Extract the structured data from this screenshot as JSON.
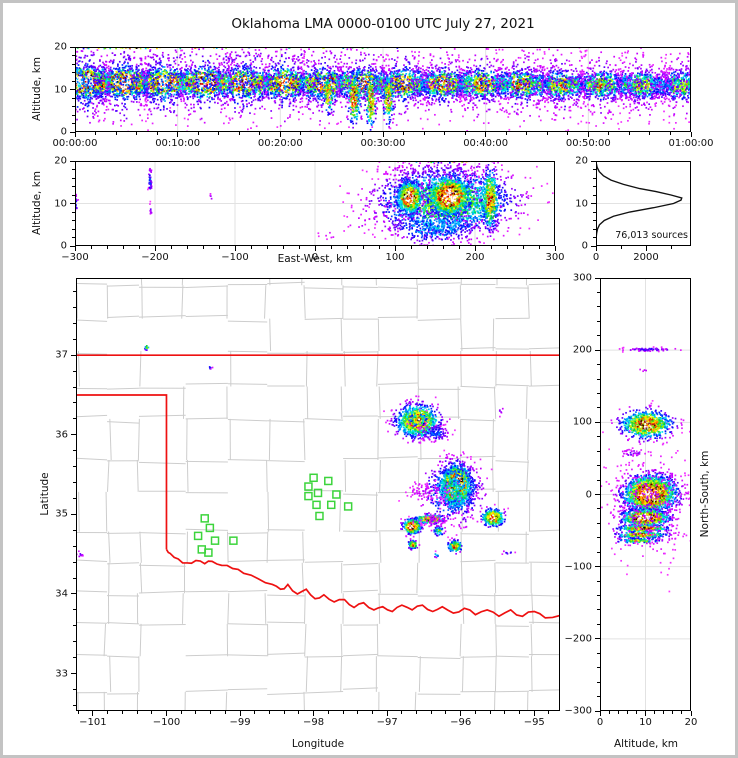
{
  "title": "Oklahoma LMA 0000-0100 UTC July 27, 2021",
  "colors": {
    "state_boundary": "#ee1111",
    "county_lines": "#cdcdcd",
    "stations": "#3cd43c",
    "gridlines": "#e2e2e2",
    "histogram_curve": "#111111",
    "density_scale_low_to_high": [
      "#ff40ff",
      "#6600ff",
      "#0000ff",
      "#00aaff",
      "#00eeee",
      "#00cc33",
      "#99ee00",
      "#ffff00",
      "#ffaa00",
      "#ff2200",
      "#cc0000",
      "#000000",
      "#999999",
      "#ffffff"
    ]
  },
  "chart_data": [
    {
      "id": "time_height",
      "type": "scatter_density",
      "xlabel": "",
      "ylabel": "Altitude, km",
      "xlim": [
        0,
        3600
      ],
      "ylim": [
        0,
        20
      ],
      "xticks": {
        "values": [
          0,
          600,
          1200,
          1800,
          2400,
          3000,
          3600
        ],
        "labels": [
          "00:00:00",
          "00:10:00",
          "00:20:00",
          "00:30:00",
          "00:40:00",
          "00:50:00",
          "01:00:00"
        ]
      },
      "yticks": {
        "values": [
          0,
          10,
          20
        ],
        "labels": [
          "0",
          "10",
          "20"
        ]
      },
      "clusters": [
        {
          "band": true,
          "x0": 0,
          "x1": 3600,
          "y0": 11.7,
          "y1": 11.0,
          "sy": 1.6,
          "n": 10500,
          "peak0": 1.06,
          "peak1": 0.42,
          "xpow": 1.25
        },
        {
          "band": true,
          "x0": 0,
          "x1": 3600,
          "y0": 11.5,
          "y1": 11.0,
          "sy": 4.2,
          "n": 3300,
          "peak0": 0.22,
          "peak1": 0.1,
          "xpow": 1.2
        },
        {
          "x": 1480,
          "y": 9.0,
          "sx": 14,
          "sy": 2.2,
          "n": 100,
          "peak": 0.72
        },
        {
          "x": 1630,
          "y": 8.0,
          "sx": 18,
          "sy": 2.9,
          "n": 170,
          "peak": 0.8
        },
        {
          "x": 1730,
          "y": 7.5,
          "sx": 15,
          "sy": 3.0,
          "n": 150,
          "peak": 0.8
        },
        {
          "x": 1830,
          "y": 8.0,
          "sx": 15,
          "sy": 2.8,
          "n": 140,
          "peak": 0.75
        },
        {
          "x": 900,
          "y": 17.6,
          "sx": 750,
          "sy": 1.2,
          "n": 130,
          "peak": 0.12
        },
        {
          "x": 420,
          "y": 19.85,
          "sx": 300,
          "sy": 0.12,
          "n": 45,
          "peak": 0.93
        },
        {
          "x": 1500,
          "y": 19.85,
          "sx": 250,
          "sy": 0.1,
          "n": 14,
          "peak": 0.5
        }
      ]
    },
    {
      "id": "ew_altitude",
      "type": "scatter_density",
      "xlabel": "East-West, km",
      "ylabel": "Altitude, km",
      "xlim": [
        -300,
        300
      ],
      "ylim": [
        0,
        20
      ],
      "xticks": {
        "values": [
          -300,
          -200,
          -100,
          0,
          100,
          200,
          300
        ],
        "labels": [
          "−300",
          "−200",
          "−100",
          "0",
          "100",
          "200",
          "300"
        ]
      },
      "yticks": {
        "values": [
          0,
          10,
          20
        ],
        "labels": [
          "0",
          "10",
          "20"
        ]
      },
      "clusters": [
        {
          "x": -299,
          "y": 10.0,
          "sx": 1.5,
          "sy": 1.3,
          "n": 26,
          "peak": 0.16
        },
        {
          "x": -206,
          "y": 15.5,
          "sx": 1.1,
          "sy": 1.6,
          "n": 36,
          "peak": 0.2
        },
        {
          "x": -205,
          "y": 8.8,
          "sx": 0.8,
          "sy": 0.8,
          "n": 8,
          "peak": 0.12
        },
        {
          "x": -130,
          "y": 11.5,
          "sx": 0.7,
          "sy": 0.5,
          "n": 4,
          "peak": 0.1
        },
        {
          "x": 20,
          "y": 2.8,
          "sx": 9,
          "sy": 0.9,
          "n": 8,
          "peak": 0.06
        },
        {
          "x": 55,
          "y": 5.5,
          "sx": 9,
          "sy": 1.1,
          "n": 11,
          "peak": 0.07
        },
        {
          "x": 88,
          "y": 8.2,
          "sx": 9,
          "sy": 1.2,
          "n": 14,
          "peak": 0.08
        },
        {
          "x": 163,
          "y": 10.5,
          "sx": 40,
          "sy": 3.6,
          "n": 2300,
          "peak": 0.55
        },
        {
          "x": 150,
          "y": 4.5,
          "sx": 28,
          "sy": 2.0,
          "n": 350,
          "peak": 0.3
        },
        {
          "x": 118,
          "y": 11.4,
          "sx": 7,
          "sy": 1.7,
          "n": 800,
          "peak": 1.05
        },
        {
          "x": 168,
          "y": 11.8,
          "sx": 12,
          "sy": 2.1,
          "n": 1300,
          "peak": 1.05
        },
        {
          "x": 219,
          "y": 11.0,
          "sx": 5,
          "sy": 3.4,
          "n": 420,
          "peak": 0.78
        },
        {
          "x": 150,
          "y": 17.5,
          "sx": 35,
          "sy": 1.2,
          "n": 120,
          "peak": 0.12
        },
        {
          "x": 170,
          "y": 19.9,
          "sx": 25,
          "sy": 0.15,
          "n": 25,
          "peak": 0.95
        }
      ]
    },
    {
      "id": "altitude_histogram",
      "type": "line",
      "annotation": "76,013 sources",
      "xlabel": "",
      "ylabel": "",
      "xlim": [
        0,
        3800
      ],
      "ylim": [
        0,
        20
      ],
      "xticks": {
        "values": [
          0,
          2000
        ],
        "labels": [
          "0",
          "2000"
        ]
      },
      "yticks": {
        "values": [
          0,
          10,
          20
        ],
        "labels": [
          "0",
          "10",
          "20"
        ]
      },
      "curve_alt_vs_count": [
        [
          0,
          0
        ],
        [
          2,
          5
        ],
        [
          3,
          25
        ],
        [
          4,
          60
        ],
        [
          5,
          140
        ],
        [
          6,
          330
        ],
        [
          7,
          700
        ],
        [
          8,
          1350
        ],
        [
          9,
          2300
        ],
        [
          10,
          3100
        ],
        [
          10.8,
          3400
        ],
        [
          11.3,
          3430
        ],
        [
          12,
          3000
        ],
        [
          12.8,
          2400
        ],
        [
          13.5,
          1750
        ],
        [
          14.5,
          1100
        ],
        [
          15.5,
          600
        ],
        [
          16.5,
          300
        ],
        [
          17.5,
          130
        ],
        [
          18.5,
          45
        ],
        [
          19.5,
          10
        ],
        [
          20,
          0
        ]
      ]
    },
    {
      "id": "plan_view_map",
      "type": "scatter_density",
      "xlabel": "Longitude",
      "ylabel": "Latitude",
      "xlim": [
        -101.23,
        -94.65
      ],
      "ylim": [
        32.53,
        37.97
      ],
      "xticks": {
        "values": [
          -101,
          -100,
          -99,
          -98,
          -97,
          -96,
          -95
        ],
        "labels": [
          "−101",
          "−100",
          "−99",
          "−98",
          "−97",
          "−96",
          "−95"
        ]
      },
      "yticks": {
        "values": [
          33,
          34,
          35,
          36,
          37
        ],
        "labels": [
          "33",
          "34",
          "35",
          "36",
          "37"
        ]
      },
      "stations": [
        [
          -99.48,
          34.95
        ],
        [
          -99.57,
          34.73
        ],
        [
          -99.41,
          34.83
        ],
        [
          -99.34,
          34.67
        ],
        [
          -99.52,
          34.56
        ],
        [
          -99.43,
          34.52
        ],
        [
          -99.09,
          34.67
        ],
        [
          -98.0,
          35.46
        ],
        [
          -97.8,
          35.42
        ],
        [
          -98.07,
          35.35
        ],
        [
          -97.94,
          35.27
        ],
        [
          -98.07,
          35.23
        ],
        [
          -97.69,
          35.25
        ],
        [
          -97.96,
          35.12
        ],
        [
          -97.76,
          35.12
        ],
        [
          -97.53,
          35.1
        ],
        [
          -97.92,
          34.98
        ]
      ],
      "state_boundary": {
        "north_border": [
          [
            -101.23,
            37.0
          ],
          [
            -94.65,
            37.0
          ]
        ],
        "panhandle": [
          [
            -101.23,
            36.5
          ],
          [
            -100.0,
            36.5
          ],
          [
            -100.0,
            34.56
          ]
        ],
        "red_river": [
          [
            -100.0,
            34.56
          ],
          [
            -99.95,
            34.51
          ],
          [
            -99.84,
            34.44
          ],
          [
            -99.72,
            34.39
          ],
          [
            -99.6,
            34.42
          ],
          [
            -99.48,
            34.38
          ],
          [
            -99.38,
            34.41
          ],
          [
            -99.25,
            34.36
          ],
          [
            -99.1,
            34.32
          ],
          [
            -98.95,
            34.26
          ],
          [
            -98.75,
            34.19
          ],
          [
            -98.56,
            34.12
          ],
          [
            -98.45,
            34.06
          ],
          [
            -98.35,
            34.12
          ],
          [
            -98.22,
            34.0
          ],
          [
            -98.1,
            34.06
          ],
          [
            -97.98,
            33.94
          ],
          [
            -97.86,
            33.99
          ],
          [
            -97.72,
            33.9
          ],
          [
            -97.58,
            33.93
          ],
          [
            -97.45,
            33.83
          ],
          [
            -97.32,
            33.89
          ],
          [
            -97.18,
            33.8
          ],
          [
            -97.06,
            33.84
          ],
          [
            -96.93,
            33.78
          ],
          [
            -96.8,
            33.86
          ],
          [
            -96.66,
            33.8
          ],
          [
            -96.52,
            33.86
          ],
          [
            -96.38,
            33.78
          ],
          [
            -96.25,
            33.84
          ],
          [
            -96.1,
            33.76
          ],
          [
            -95.95,
            33.82
          ],
          [
            -95.8,
            33.74
          ],
          [
            -95.64,
            33.8
          ],
          [
            -95.48,
            33.72
          ],
          [
            -95.32,
            33.8
          ],
          [
            -95.16,
            33.72
          ],
          [
            -95.0,
            33.78
          ],
          [
            -94.85,
            33.7
          ],
          [
            -94.65,
            33.73
          ]
        ]
      },
      "clusters": [
        {
          "x": -96.58,
          "y": 36.17,
          "sx": 0.14,
          "sy": 0.1,
          "n": 900,
          "peak": 0.78
        },
        {
          "x": -96.58,
          "y": 36.19,
          "sx": 0.05,
          "sy": 0.035,
          "n": 150,
          "peak": 0.9
        },
        {
          "x": -96.35,
          "y": 36.02,
          "sx": 0.1,
          "sy": 0.05,
          "n": 120,
          "peak": 0.22
        },
        {
          "x": -96.06,
          "y": 35.36,
          "sx": 0.1,
          "sy": 0.125,
          "n": 1700,
          "peak": 1.02
        },
        {
          "x": -96.12,
          "y": 35.28,
          "sx": 0.05,
          "sy": 0.06,
          "n": 300,
          "peak": 0.9
        },
        {
          "x": -96.1,
          "y": 35.3,
          "sx": 0.19,
          "sy": 0.19,
          "n": 450,
          "peak": 0.38
        },
        {
          "x": -96.45,
          "y": 35.28,
          "sx": 0.16,
          "sy": 0.06,
          "n": 90,
          "peak": 0.07
        },
        {
          "x": -96.66,
          "y": 34.85,
          "sx": 0.055,
          "sy": 0.042,
          "n": 420,
          "peak": 1.05
        },
        {
          "x": -96.42,
          "y": 34.94,
          "sx": 0.09,
          "sy": 0.028,
          "n": 220,
          "peak": 0.88
        },
        {
          "x": -96.65,
          "y": 34.62,
          "sx": 0.03,
          "sy": 0.025,
          "n": 90,
          "peak": 0.8
        },
        {
          "x": -96.3,
          "y": 34.79,
          "sx": 0.035,
          "sy": 0.03,
          "n": 60,
          "peak": 0.5
        },
        {
          "x": -96.08,
          "y": 34.6,
          "sx": 0.045,
          "sy": 0.035,
          "n": 170,
          "peak": 0.75
        },
        {
          "x": -95.56,
          "y": 34.96,
          "sx": 0.07,
          "sy": 0.05,
          "n": 400,
          "peak": 0.92
        },
        {
          "x": -96.35,
          "y": 34.93,
          "sx": 0.12,
          "sy": 0.04,
          "n": 60,
          "peak": 0.08
        },
        {
          "x": -96.33,
          "y": 34.49,
          "sx": 0.02,
          "sy": 0.015,
          "n": 8,
          "peak": 0.3
        },
        {
          "x": -100.27,
          "y": 37.1,
          "sx": 0.015,
          "sy": 0.015,
          "n": 10,
          "peak": 0.6
        },
        {
          "x": -99.4,
          "y": 36.85,
          "sx": 0.012,
          "sy": 0.012,
          "n": 5,
          "peak": 0.3
        },
        {
          "x": -101.18,
          "y": 34.5,
          "sx": 0.03,
          "sy": 0.02,
          "n": 8,
          "peak": 0.1
        },
        {
          "x": -95.35,
          "y": 34.52,
          "sx": 0.04,
          "sy": 0.015,
          "n": 8,
          "peak": 0.15
        },
        {
          "x": -95.5,
          "y": 36.3,
          "sx": 0.05,
          "sy": 0.03,
          "n": 6,
          "peak": 0.12
        }
      ]
    },
    {
      "id": "ns_altitude",
      "type": "scatter_density",
      "xlabel": "Altitude, km",
      "ylabel": "North-South, km",
      "xlim": [
        0,
        20
      ],
      "ylim": [
        -300,
        300
      ],
      "xticks": {
        "values": [
          0,
          10,
          20
        ],
        "labels": [
          "0",
          "10",
          "20"
        ]
      },
      "yticks": {
        "values": [
          -300,
          -200,
          -100,
          0,
          100,
          200,
          300
        ],
        "labels": [
          "−300",
          "−200",
          "−100",
          "0",
          "100",
          "200",
          "300"
        ]
      },
      "clusters": [
        {
          "x": 11,
          "y": 201,
          "sx": 3.2,
          "sy": 1.4,
          "n": 70,
          "peak": 0.14
        },
        {
          "x": 9,
          "y": 172,
          "sx": 0.8,
          "sy": 0.8,
          "n": 4,
          "peak": 0.1
        },
        {
          "x": 10.2,
          "y": 97,
          "sx": 2.6,
          "sy": 9,
          "n": 850,
          "peak": 0.85
        },
        {
          "x": 7,
          "y": 57,
          "sx": 1.5,
          "sy": 3,
          "n": 30,
          "peak": 0.12
        },
        {
          "x": 11,
          "y": 1,
          "sx": 2.7,
          "sy": 12,
          "n": 2100,
          "peak": 1.04
        },
        {
          "x": 10,
          "y": -32,
          "sx": 2.4,
          "sy": 5.5,
          "n": 950,
          "peak": 1.05
        },
        {
          "x": 9.5,
          "y": -47,
          "sx": 2.6,
          "sy": 2.2,
          "n": 300,
          "peak": 0.85
        },
        {
          "x": 9,
          "y": -56,
          "sx": 2.6,
          "sy": 2.0,
          "n": 250,
          "peak": 0.8
        },
        {
          "x": 8.5,
          "y": -64,
          "sx": 2.2,
          "sy": 1.6,
          "n": 120,
          "peak": 0.6
        },
        {
          "x": 11,
          "y": -15,
          "sx": 4.5,
          "sy": 40,
          "n": 350,
          "peak": 0.08
        }
      ]
    }
  ]
}
